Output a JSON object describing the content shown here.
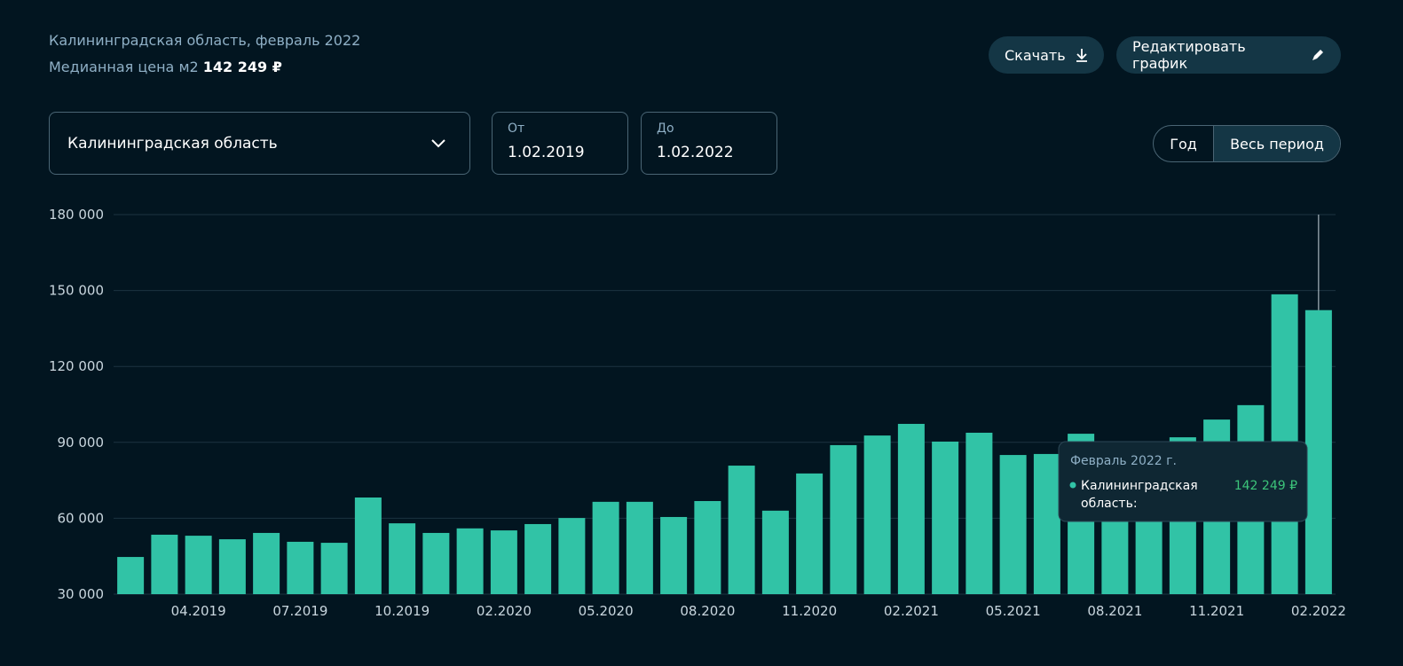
{
  "header": {
    "subtitle": "Калининградская область, февраль 2022",
    "price_label": "Медианная цена м2",
    "price": "142 249 ₽"
  },
  "buttons": {
    "download": "Скачать",
    "edit": "Редактировать график"
  },
  "filters": {
    "region": "Калининградская область",
    "from_label": "От",
    "from": "1.02.2019",
    "to_label": "До",
    "to": "1.02.2022"
  },
  "period": {
    "options": [
      "Год",
      "Весь период"
    ]
  },
  "chart_data": {
    "type": "bar",
    "color": "#31c3a6",
    "grid": true,
    "categories": [
      null,
      null,
      "04.2019",
      null,
      null,
      "07.2019",
      null,
      null,
      "10.2019",
      null,
      null,
      "02.2020",
      null,
      null,
      "05.2020",
      null,
      null,
      "08.2020",
      null,
      null,
      "11.2020",
      null,
      null,
      "02.2021",
      null,
      null,
      "05.2021",
      null,
      null,
      "08.2021",
      null,
      null,
      "11.2021",
      null,
      null,
      "02.2022"
    ],
    "values": [
      44700,
      53500,
      53100,
      51700,
      54200,
      50700,
      50300,
      68200,
      58000,
      54200,
      56000,
      55200,
      57700,
      60100,
      66500,
      66500,
      60500,
      66800,
      80800,
      63000,
      77700,
      88900,
      92700,
      97300,
      90300,
      93800,
      85000,
      85400,
      93400,
      86000,
      88000,
      92000,
      99000,
      104700,
      148500,
      142249
    ],
    "ylim": [
      30000,
      180000
    ],
    "yticks": [
      {
        "value": 30000,
        "label": "30 000"
      },
      {
        "value": 60000,
        "label": "60 000"
      },
      {
        "value": 90000,
        "label": "90 000"
      },
      {
        "value": 120000,
        "label": "120 000"
      },
      {
        "value": 150000,
        "label": "150 000"
      },
      {
        "value": 180000,
        "label": "180 000"
      }
    ],
    "tooltip": {
      "title": "Февраль 2022 г.",
      "label": "Калининградская область:",
      "value": "142 249 ₽"
    }
  }
}
